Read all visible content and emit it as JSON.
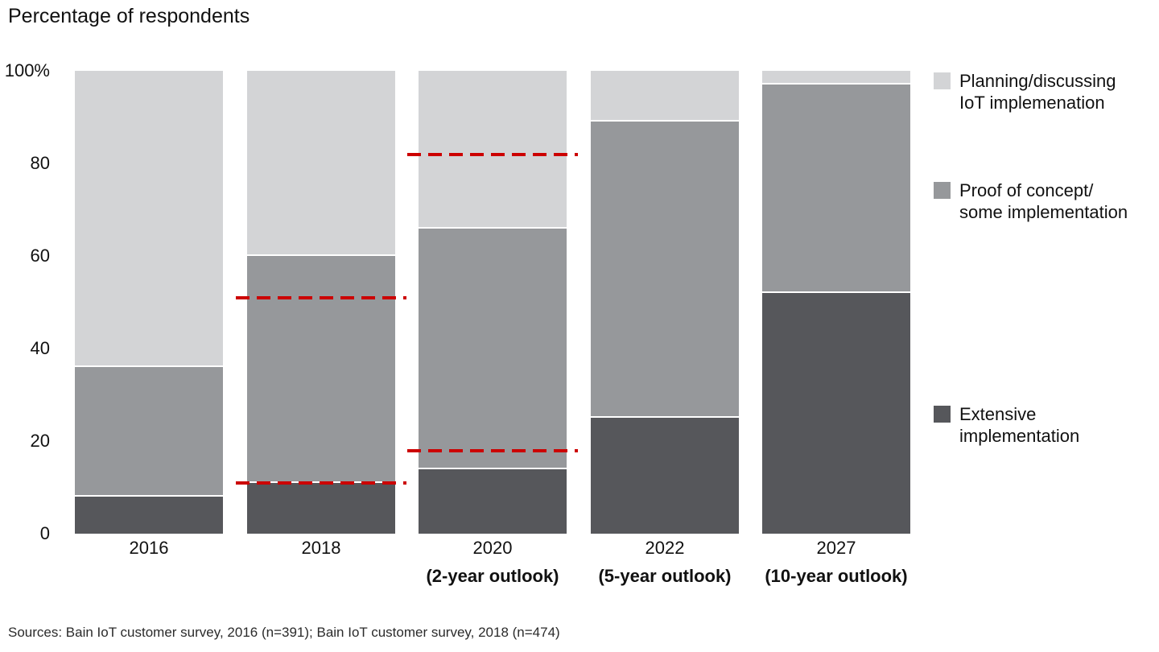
{
  "title": "Percentage of respondents",
  "source": "Sources: Bain IoT customer survey, 2016 (n=391); Bain IoT customer survey, 2018 (n=474)",
  "colors": {
    "planning": "#d3d4d6",
    "proof": "#96989b",
    "extensive": "#56575b",
    "reference_red": "#cc0000"
  },
  "chart_data": {
    "type": "bar",
    "stacked": true,
    "title": "Percentage of respondents",
    "xlabel": "",
    "ylabel": "Percentage of respondents",
    "ylim": [
      0,
      100
    ],
    "grid": false,
    "legend_position": "right",
    "categories": [
      "2016",
      "2018",
      "2020",
      "2022",
      "2027"
    ],
    "category_sublabels": [
      "",
      "",
      "(2-year outlook)",
      "(5-year outlook)",
      "(10-year outlook)"
    ],
    "yticks": [
      "100%",
      "80",
      "60",
      "40",
      "20",
      "0"
    ],
    "ytick_values": [
      100,
      80,
      60,
      40,
      20,
      0
    ],
    "series": [
      {
        "name": "Extensive implementation",
        "color": "#56575b",
        "values": [
          8,
          11,
          14,
          25,
          52
        ]
      },
      {
        "name": "Proof of concept/some implementation",
        "color": "#96989b",
        "values": [
          28,
          49,
          52,
          64,
          45
        ]
      },
      {
        "name": "Planning/discussing IoT implemenation",
        "color": "#d3d4d6",
        "values": [
          64,
          40,
          34,
          11,
          3
        ]
      }
    ],
    "reference_lines": [
      {
        "category": "2018",
        "value": 51,
        "color": "#cc0000",
        "style": "dashed"
      },
      {
        "category": "2018",
        "value": 11,
        "color": "#cc0000",
        "style": "dashed"
      },
      {
        "category": "2020",
        "value": 82,
        "color": "#cc0000",
        "style": "dashed"
      },
      {
        "category": "2020",
        "value": 18,
        "color": "#cc0000",
        "style": "dashed"
      }
    ]
  },
  "legend": {
    "items": [
      {
        "label_line1": "Planning/discussing",
        "label_line2": "IoT implemenation",
        "color": "#d3d4d6"
      },
      {
        "label_line1": "Proof of concept/",
        "label_line2": "some implementation",
        "color": "#96989b"
      },
      {
        "label_line1": "Extensive",
        "label_line2": "implementation",
        "color": "#56575b"
      }
    ]
  }
}
